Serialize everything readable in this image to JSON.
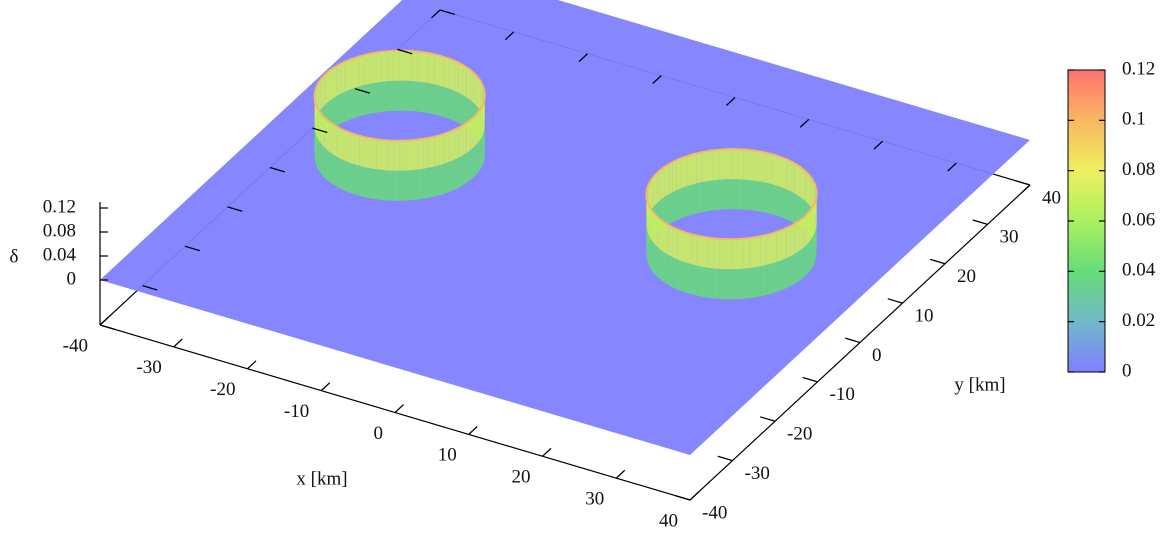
{
  "chart_data": {
    "type": "surface",
    "xlabel": "x [km]",
    "ylabel": "y [km]",
    "zlabel": "δ",
    "xlim": [
      -40,
      40
    ],
    "ylim": [
      -40,
      40
    ],
    "zlim": [
      -0.075,
      0.13
    ],
    "xticks": [
      -40,
      -30,
      -20,
      -10,
      0,
      10,
      20,
      30,
      40
    ],
    "yticks": [
      -40,
      -30,
      -20,
      -10,
      0,
      10,
      20,
      30,
      40
    ],
    "zticks": [
      0,
      0.04,
      0.08,
      0.12
    ],
    "cblim": [
      0,
      0.12
    ],
    "cbticks": [
      0,
      0.02,
      0.04,
      0.06,
      0.08,
      0.1,
      0.12
    ],
    "colormap": [
      "#8080ff",
      "#70b8c8",
      "#66dd77",
      "#aaf060",
      "#eef060",
      "#f8b860",
      "#ff7070"
    ],
    "rings": [
      {
        "x": -23,
        "y": 1,
        "radius": 10,
        "height": 0.1
      },
      {
        "x": 22,
        "y": 1,
        "radius": 10,
        "height": 0.1
      }
    ]
  }
}
